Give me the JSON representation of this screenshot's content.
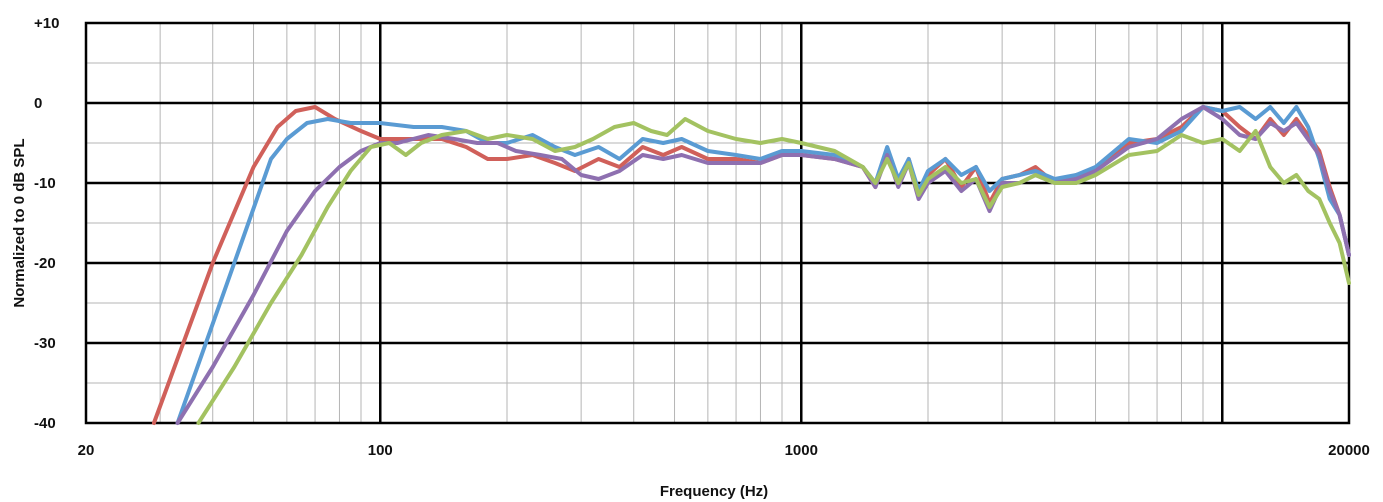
{
  "chart_data": {
    "type": "line",
    "title": "",
    "xlabel": "Frequency (Hz)",
    "ylabel": "Normalized to 0 dB SPL",
    "x_scale": "log",
    "xlim": [
      20,
      20000
    ],
    "ylim": [
      -40,
      10
    ],
    "x_ticks": [
      {
        "value": 20,
        "label": "20"
      },
      {
        "value": 100,
        "label": "100"
      },
      {
        "value": 1000,
        "label": "1000"
      },
      {
        "value": 20000,
        "label": "20000"
      }
    ],
    "y_ticks": [
      {
        "value": 10,
        "label": "+10"
      },
      {
        "value": 0,
        "label": "0"
      },
      {
        "value": -10,
        "label": "-10"
      },
      {
        "value": -20,
        "label": "-20"
      },
      {
        "value": -30,
        "label": "-30"
      },
      {
        "value": -40,
        "label": "-40"
      }
    ],
    "grid": true,
    "legend": "none",
    "series": [
      {
        "color": "#d0605a",
        "points": [
          [
            29,
            -40
          ],
          [
            40,
            -20
          ],
          [
            50,
            -8
          ],
          [
            57,
            -3
          ],
          [
            63,
            -1
          ],
          [
            70,
            -0.5
          ],
          [
            78,
            -2
          ],
          [
            90,
            -3.5
          ],
          [
            100,
            -4.5
          ],
          [
            120,
            -4.5
          ],
          [
            140,
            -4.5
          ],
          [
            160,
            -5.5
          ],
          [
            180,
            -7
          ],
          [
            200,
            -7
          ],
          [
            230,
            -6.5
          ],
          [
            260,
            -7.5
          ],
          [
            290,
            -8.5
          ],
          [
            330,
            -7
          ],
          [
            370,
            -8
          ],
          [
            420,
            -5.5
          ],
          [
            470,
            -6.5
          ],
          [
            520,
            -5.5
          ],
          [
            600,
            -7
          ],
          [
            700,
            -7
          ],
          [
            800,
            -7.5
          ],
          [
            900,
            -6.5
          ],
          [
            1000,
            -6.5
          ],
          [
            1200,
            -7
          ],
          [
            1400,
            -8
          ],
          [
            1500,
            -10.5
          ],
          [
            1600,
            -6
          ],
          [
            1700,
            -10
          ],
          [
            1800,
            -7
          ],
          [
            1900,
            -11.5
          ],
          [
            2000,
            -9
          ],
          [
            2200,
            -7
          ],
          [
            2400,
            -10.5
          ],
          [
            2600,
            -8
          ],
          [
            2800,
            -12.5
          ],
          [
            3000,
            -9.5
          ],
          [
            3300,
            -9
          ],
          [
            3600,
            -8
          ],
          [
            4000,
            -10
          ],
          [
            4500,
            -9
          ],
          [
            5000,
            -8.5
          ],
          [
            6000,
            -5
          ],
          [
            7000,
            -4.5
          ],
          [
            8000,
            -3
          ],
          [
            9000,
            -0.5
          ],
          [
            10000,
            -1
          ],
          [
            11000,
            -3
          ],
          [
            12000,
            -4.5
          ],
          [
            13000,
            -2
          ],
          [
            14000,
            -4
          ],
          [
            15000,
            -2
          ],
          [
            17000,
            -6
          ],
          [
            18000,
            -10.5
          ],
          [
            19000,
            -14
          ],
          [
            20000,
            -19
          ]
        ]
      },
      {
        "color": "#5a9bd3",
        "points": [
          [
            33,
            -40
          ],
          [
            45,
            -20
          ],
          [
            55,
            -7
          ],
          [
            60,
            -4.5
          ],
          [
            67,
            -2.5
          ],
          [
            75,
            -2
          ],
          [
            85,
            -2.5
          ],
          [
            100,
            -2.5
          ],
          [
            120,
            -3
          ],
          [
            140,
            -3
          ],
          [
            160,
            -3.5
          ],
          [
            180,
            -5
          ],
          [
            200,
            -5
          ],
          [
            230,
            -4
          ],
          [
            260,
            -5.5
          ],
          [
            290,
            -6.5
          ],
          [
            330,
            -5.5
          ],
          [
            370,
            -7
          ],
          [
            420,
            -4.5
          ],
          [
            470,
            -5
          ],
          [
            520,
            -4.5
          ],
          [
            600,
            -6
          ],
          [
            700,
            -6.5
          ],
          [
            800,
            -7
          ],
          [
            900,
            -6
          ],
          [
            1000,
            -6
          ],
          [
            1200,
            -6.5
          ],
          [
            1400,
            -8
          ],
          [
            1500,
            -10
          ],
          [
            1600,
            -5.5
          ],
          [
            1700,
            -9.5
          ],
          [
            1800,
            -7
          ],
          [
            1900,
            -11
          ],
          [
            2000,
            -8.5
          ],
          [
            2200,
            -7
          ],
          [
            2400,
            -9
          ],
          [
            2600,
            -8
          ],
          [
            2800,
            -11
          ],
          [
            3000,
            -9.5
          ],
          [
            3300,
            -9
          ],
          [
            3600,
            -8.5
          ],
          [
            4000,
            -9.5
          ],
          [
            4500,
            -9
          ],
          [
            5000,
            -8
          ],
          [
            6000,
            -4.5
          ],
          [
            7000,
            -5
          ],
          [
            8000,
            -3.5
          ],
          [
            9000,
            -0.5
          ],
          [
            10000,
            -1
          ],
          [
            11000,
            -0.5
          ],
          [
            12000,
            -2
          ],
          [
            13000,
            -0.5
          ],
          [
            14000,
            -2.5
          ],
          [
            15000,
            -0.5
          ],
          [
            16000,
            -3
          ],
          [
            17000,
            -7
          ],
          [
            18000,
            -12
          ],
          [
            19000,
            -14
          ],
          [
            20000,
            -19
          ]
        ]
      },
      {
        "color": "#8e70b0",
        "points": [
          [
            33,
            -40
          ],
          [
            40,
            -33
          ],
          [
            50,
            -24
          ],
          [
            60,
            -16
          ],
          [
            70,
            -11
          ],
          [
            80,
            -8
          ],
          [
            90,
            -6
          ],
          [
            100,
            -5
          ],
          [
            110,
            -5
          ],
          [
            130,
            -4
          ],
          [
            150,
            -4.5
          ],
          [
            170,
            -5
          ],
          [
            190,
            -5
          ],
          [
            210,
            -6
          ],
          [
            240,
            -6.5
          ],
          [
            270,
            -7
          ],
          [
            300,
            -9
          ],
          [
            330,
            -9.5
          ],
          [
            370,
            -8.5
          ],
          [
            420,
            -6.5
          ],
          [
            470,
            -7
          ],
          [
            520,
            -6.5
          ],
          [
            600,
            -7.5
          ],
          [
            700,
            -7.5
          ],
          [
            800,
            -7.5
          ],
          [
            900,
            -6.5
          ],
          [
            1000,
            -6.5
          ],
          [
            1200,
            -7
          ],
          [
            1400,
            -8
          ],
          [
            1500,
            -10.5
          ],
          [
            1600,
            -6.5
          ],
          [
            1700,
            -10.5
          ],
          [
            1800,
            -7.5
          ],
          [
            1900,
            -12
          ],
          [
            2000,
            -10
          ],
          [
            2200,
            -8.5
          ],
          [
            2400,
            -11
          ],
          [
            2600,
            -9.5
          ],
          [
            2800,
            -13.5
          ],
          [
            3000,
            -10
          ],
          [
            3300,
            -10
          ],
          [
            3600,
            -9
          ],
          [
            4000,
            -10
          ],
          [
            4500,
            -9.5
          ],
          [
            5000,
            -8.5
          ],
          [
            6000,
            -5.5
          ],
          [
            7000,
            -4.5
          ],
          [
            8000,
            -2
          ],
          [
            9000,
            -0.5
          ],
          [
            10000,
            -2
          ],
          [
            11000,
            -4
          ],
          [
            12000,
            -4.5
          ],
          [
            13000,
            -2.5
          ],
          [
            14000,
            -3.5
          ],
          [
            15000,
            -2.5
          ],
          [
            17000,
            -6.5
          ],
          [
            18000,
            -11
          ],
          [
            19000,
            -14
          ],
          [
            20000,
            -19
          ]
        ]
      },
      {
        "color": "#a3c261",
        "points": [
          [
            37,
            -40
          ],
          [
            45,
            -33
          ],
          [
            55,
            -25
          ],
          [
            65,
            -19
          ],
          [
            75,
            -13
          ],
          [
            85,
            -8.5
          ],
          [
            95,
            -5.5
          ],
          [
            105,
            -5
          ],
          [
            115,
            -6.5
          ],
          [
            125,
            -5
          ],
          [
            140,
            -4
          ],
          [
            160,
            -3.5
          ],
          [
            180,
            -4.5
          ],
          [
            200,
            -4
          ],
          [
            230,
            -4.5
          ],
          [
            260,
            -6
          ],
          [
            290,
            -5.5
          ],
          [
            320,
            -4.5
          ],
          [
            360,
            -3
          ],
          [
            400,
            -2.5
          ],
          [
            440,
            -3.5
          ],
          [
            480,
            -4
          ],
          [
            530,
            -2
          ],
          [
            600,
            -3.5
          ],
          [
            700,
            -4.5
          ],
          [
            800,
            -5
          ],
          [
            900,
            -4.5
          ],
          [
            1000,
            -5
          ],
          [
            1200,
            -6
          ],
          [
            1400,
            -8
          ],
          [
            1500,
            -10
          ],
          [
            1600,
            -7
          ],
          [
            1700,
            -10
          ],
          [
            1800,
            -7.5
          ],
          [
            1900,
            -11.5
          ],
          [
            2000,
            -9.5
          ],
          [
            2200,
            -8
          ],
          [
            2400,
            -10
          ],
          [
            2600,
            -9.5
          ],
          [
            2800,
            -13
          ],
          [
            3000,
            -10.5
          ],
          [
            3300,
            -10
          ],
          [
            3600,
            -9
          ],
          [
            4000,
            -10
          ],
          [
            4500,
            -10
          ],
          [
            5000,
            -9
          ],
          [
            6000,
            -6.5
          ],
          [
            7000,
            -6
          ],
          [
            8000,
            -4
          ],
          [
            9000,
            -5
          ],
          [
            10000,
            -4.5
          ],
          [
            11000,
            -6
          ],
          [
            12000,
            -3.5
          ],
          [
            13000,
            -8
          ],
          [
            14000,
            -10
          ],
          [
            15000,
            -9
          ],
          [
            16000,
            -11
          ],
          [
            17000,
            -12
          ],
          [
            18000,
            -15
          ],
          [
            19000,
            -17.5
          ],
          [
            20000,
            -22.5
          ]
        ]
      }
    ]
  }
}
